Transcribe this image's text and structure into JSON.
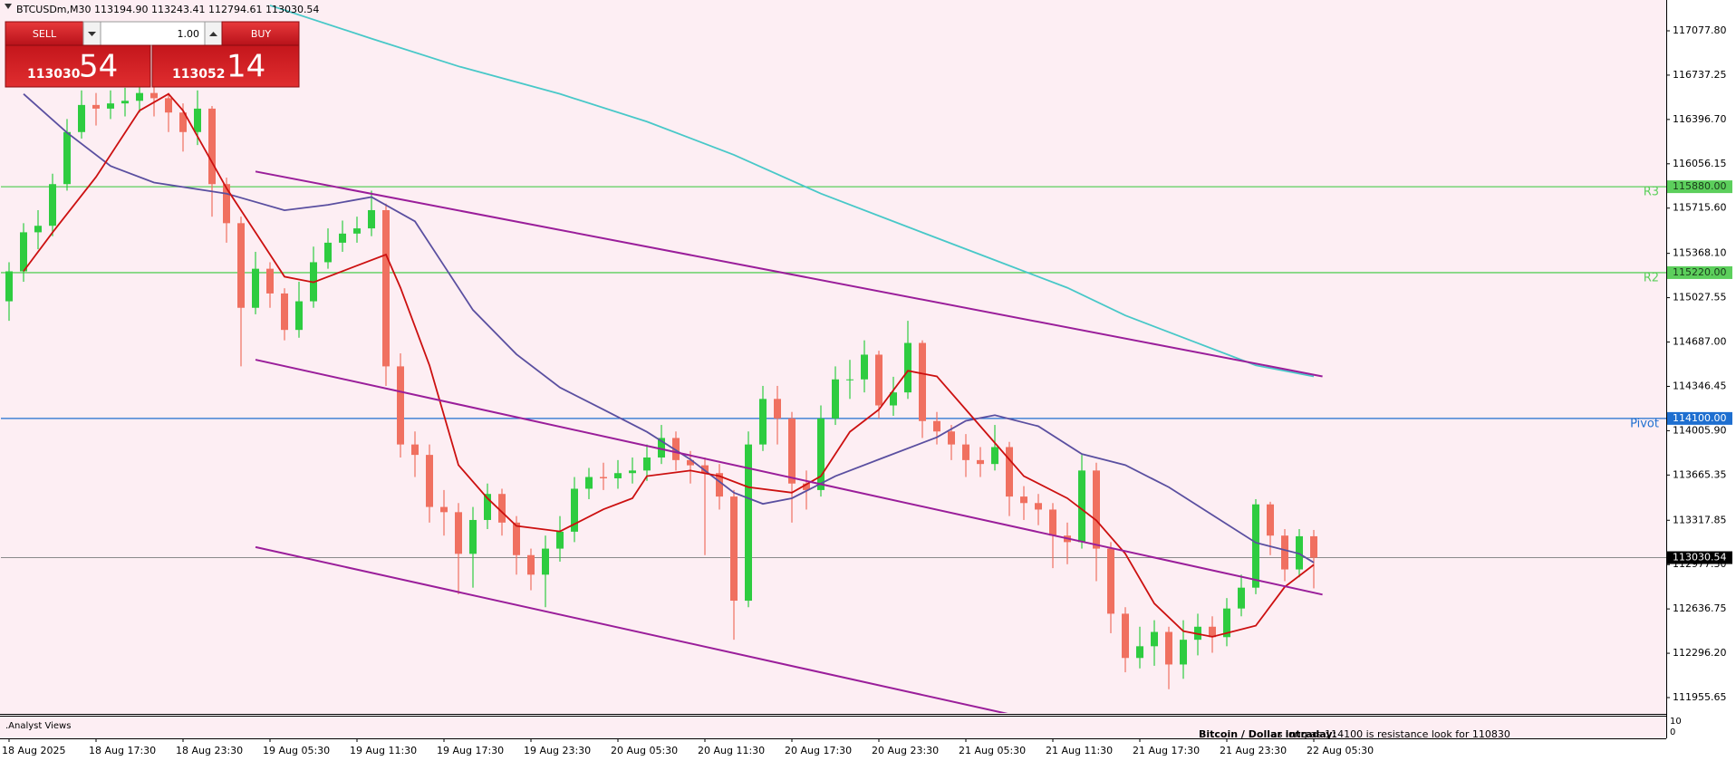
{
  "header": {
    "title": "BTCUSDm,M30  113194.90 113243.41 112794.61 113030.54"
  },
  "trade_panel": {
    "sell_label": "SELL",
    "buy_label": "BUY",
    "lot": "1.00",
    "sell_price_main": "113030",
    "sell_price_big": "54",
    "buy_price_main": "113052",
    "buy_price_big": "14"
  },
  "chart_data": {
    "type": "candlestick",
    "background": "#fdeef3",
    "up_color": "#2ecc40",
    "down_color": "#f07060",
    "categories": [
      "18 Aug 2025",
      null,
      null,
      null,
      null,
      null,
      "18 Aug 17:30",
      null,
      null,
      null,
      null,
      null,
      "18 Aug 23:30",
      null,
      null,
      null,
      null,
      null,
      "19 Aug 05:30",
      null,
      null,
      null,
      null,
      null,
      "19 Aug 11:30",
      null,
      null,
      null,
      null,
      null,
      "19 Aug 17:30",
      null,
      null,
      null,
      null,
      null,
      "19 Aug 23:30",
      null,
      null,
      null,
      null,
      null,
      "20 Aug 05:30",
      null,
      null,
      null,
      null,
      null,
      "20 Aug 11:30",
      null,
      null,
      null,
      null,
      null,
      "20 Aug 17:30",
      null,
      null,
      null,
      null,
      null,
      "20 Aug 23:30",
      null,
      null,
      null,
      null,
      null,
      "21 Aug 05:30",
      null,
      null,
      null,
      null,
      null,
      "21 Aug 11:30",
      null,
      null,
      null,
      null,
      null,
      "21 Aug 17:30",
      null,
      null,
      null,
      null,
      null,
      "21 Aug 23:30",
      null,
      null,
      null,
      null,
      null,
      "22 Aug 05:30"
    ],
    "open": [
      115000,
      115230,
      115530,
      115580,
      115900,
      116300,
      116508,
      116480,
      116520,
      116540,
      116600,
      116560,
      116450,
      116300,
      116480,
      115900,
      115600,
      114950,
      115250,
      115060,
      114780,
      115000,
      115300,
      115450,
      115520,
      115560,
      115700,
      114500,
      113900,
      113820,
      113420,
      113380,
      113060,
      113320,
      113520,
      113300,
      113050,
      112900,
      113100,
      113230,
      113560,
      113650,
      113640,
      113680,
      113700,
      113800,
      113950,
      113780,
      113740,
      113680,
      113500,
      112700,
      113900,
      114250,
      114100,
      113600,
      113550,
      114100,
      114400,
      114400,
      114590,
      114200,
      114300,
      114680,
      114080,
      114000,
      113900,
      113780,
      113750,
      113880,
      113500,
      113450,
      113400,
      113200,
      113150,
      113700,
      113100,
      112600,
      112260,
      112350,
      112460,
      112210,
      112400,
      112500,
      112420,
      112640,
      112800,
      113440,
      113200,
      112940,
      113194.9
    ],
    "high": [
      115300,
      115600,
      115700,
      115980,
      116400,
      116620,
      116600,
      116620,
      116640,
      116720,
      116700,
      116600,
      116520,
      116620,
      116500,
      115950,
      115650,
      115380,
      115300,
      115100,
      115150,
      115420,
      115560,
      115620,
      115650,
      115850,
      115750,
      114600,
      114000,
      113900,
      113550,
      113450,
      113420,
      113600,
      113560,
      113350,
      113100,
      113200,
      113350,
      113650,
      113720,
      113760,
      113780,
      113800,
      113900,
      114050,
      114000,
      113850,
      113800,
      113750,
      113550,
      114000,
      114350,
      114350,
      114150,
      113700,
      114200,
      114500,
      114550,
      114700,
      114620,
      114420,
      114850,
      114700,
      114150,
      114050,
      113980,
      113880,
      114050,
      113920,
      113580,
      113520,
      113450,
      113300,
      113820,
      113760,
      113150,
      112650,
      112500,
      112550,
      112500,
      112550,
      112600,
      112580,
      112720,
      112900,
      113480,
      113460,
      113250,
      113250,
      113243.41
    ],
    "low": [
      114850,
      115150,
      115400,
      115500,
      115850,
      116250,
      116350,
      116400,
      116420,
      116450,
      116420,
      116300,
      116150,
      116200,
      115650,
      115450,
      114500,
      114900,
      114950,
      114700,
      114720,
      114950,
      115250,
      115380,
      115450,
      115500,
      114350,
      113800,
      113650,
      113300,
      113200,
      112750,
      112800,
      113250,
      113200,
      112900,
      112780,
      112650,
      113000,
      113150,
      113480,
      113550,
      113560,
      113600,
      113620,
      113750,
      113700,
      113600,
      113050,
      113400,
      112400,
      112650,
      113850,
      113900,
      113300,
      113400,
      113500,
      114050,
      114250,
      114300,
      114100,
      114120,
      114250,
      113950,
      113900,
      113780,
      113650,
      113650,
      113700,
      113350,
      113320,
      113280,
      112950,
      112980,
      113100,
      112850,
      112450,
      112150,
      112180,
      112200,
      112020,
      112100,
      112280,
      112300,
      112350,
      112580,
      112750,
      113050,
      112850,
      112880,
      112794.61
    ],
    "close": [
      115230,
      115530,
      115580,
      115900,
      116300,
      116508,
      116480,
      116520,
      116540,
      116600,
      116560,
      116450,
      116300,
      116480,
      115900,
      115600,
      114950,
      115250,
      115060,
      114780,
      115000,
      115300,
      115450,
      115520,
      115560,
      115700,
      114500,
      113900,
      113820,
      113420,
      113380,
      113060,
      113320,
      113520,
      113300,
      113050,
      112900,
      113100,
      113230,
      113560,
      113650,
      113640,
      113680,
      113700,
      113800,
      113950,
      113780,
      113740,
      113680,
      113500,
      112700,
      113900,
      114250,
      114100,
      113600,
      113550,
      114100,
      114400,
      114400,
      114590,
      114200,
      114300,
      114680,
      114080,
      114000,
      113900,
      113780,
      113750,
      113880,
      113500,
      113450,
      113400,
      113200,
      113150,
      113700,
      113100,
      112600,
      112260,
      112350,
      112460,
      112210,
      112400,
      112500,
      112420,
      112640,
      112800,
      113440,
      113200,
      112940,
      113194.9,
      113030.54
    ],
    "moving_averages": [
      {
        "color": "#48c8c8",
        "x": [
          18,
          25,
          31,
          38,
          44,
          50,
          56,
          62,
          68,
          73,
          77,
          82,
          86,
          90
        ],
        "values": [
          117273,
          117018,
          116805,
          116593,
          116380,
          116125,
          115827,
          115571,
          115316,
          115104,
          114891,
          114678,
          114508,
          114423
        ]
      },
      {
        "color": "#5a4fa0",
        "x": [
          1,
          4,
          7,
          10,
          15,
          19,
          22,
          25,
          28,
          30,
          32,
          35,
          38,
          41,
          44,
          47,
          50,
          52,
          54,
          57,
          60,
          64,
          66,
          68,
          71,
          74,
          77,
          80,
          83,
          86,
          89,
          90
        ],
        "values": [
          116593,
          116295,
          116039,
          115912,
          115827,
          115699,
          115741,
          115801,
          115614,
          115274,
          114933,
          114593,
          114338,
          114168,
          113997,
          113785,
          113530,
          113444,
          113487,
          113657,
          113785,
          113955,
          114082,
          114125,
          114040,
          113827,
          113742,
          113572,
          113359,
          113146,
          113061,
          112993
        ]
      },
      {
        "color": "#cc1010",
        "x": [
          1,
          3,
          6,
          9,
          11,
          12,
          15,
          17,
          19,
          21,
          24,
          26,
          27,
          29,
          31,
          33,
          35,
          38,
          41,
          43,
          44,
          47,
          49,
          51,
          54,
          56,
          58,
          60,
          62,
          64,
          66,
          68,
          70,
          73,
          75,
          77,
          79,
          81,
          83,
          86,
          88,
          90
        ],
        "values": [
          115231,
          115529,
          115955,
          116465,
          116593,
          116465,
          115869,
          115529,
          115189,
          115146,
          115274,
          115359,
          115104,
          114508,
          113742,
          113487,
          113274,
          113232,
          113402,
          113487,
          113657,
          113700,
          113657,
          113572,
          113530,
          113657,
          113997,
          114168,
          114466,
          114423,
          114168,
          113912,
          113657,
          113487,
          113317,
          113061,
          112678,
          112466,
          112423,
          112508,
          112806,
          112976
        ]
      }
    ],
    "trendlines": [
      {
        "color": "#9a1e9a",
        "x": [
          17,
          90.6
        ],
        "values": [
          115997,
          114423
        ]
      },
      {
        "color": "#9a1e9a",
        "x": [
          17,
          90.6
        ],
        "values": [
          114551,
          112747
        ]
      },
      {
        "color": "#9a1e9a",
        "x": [
          17,
          69
        ],
        "values": [
          113112,
          111828
        ]
      }
    ],
    "levels": [
      {
        "label": "R3",
        "value": 115880,
        "value_label": "115880.00",
        "color": "#5ccf5c"
      },
      {
        "label": "R2",
        "value": 115220,
        "value_label": "115220.00",
        "color": "#5ccf5c"
      },
      {
        "label": "Pivot",
        "value": 114100,
        "value_label": "114100.00",
        "color": "#1e6fd0"
      }
    ],
    "last_price": 113030.54,
    "last_price_color": "#000000",
    "ylim": [
      111830.4,
      117314.4
    ],
    "yticks": [
      {
        "value": 117077.8,
        "label": "117077.80"
      },
      116737.25,
      {
        "value": 116396.7,
        "label": "116396.70"
      },
      116056.15,
      {
        "value": 115715.6,
        "label": "115715.60"
      },
      {
        "value": 115368.1,
        "label": "115368.10"
      },
      115027.55,
      {
        "value": 114687,
        "label": "114687.00"
      },
      114346.45,
      {
        "value": 114005.9,
        "label": "114005.90"
      },
      113665.35,
      113317.85,
      {
        "value": 112977.3,
        "label": "112977.30"
      },
      112636.75,
      {
        "value": 112296.2,
        "label": "112296.20"
      },
      111955.65
    ]
  },
  "indicator_panel": {
    "title": ".Analyst Views",
    "yticks": [
      10,
      0
    ],
    "headline": "Bitcoin / Dollar intraday:",
    "text": "as long as 114100 is resistance look for 110830"
  }
}
